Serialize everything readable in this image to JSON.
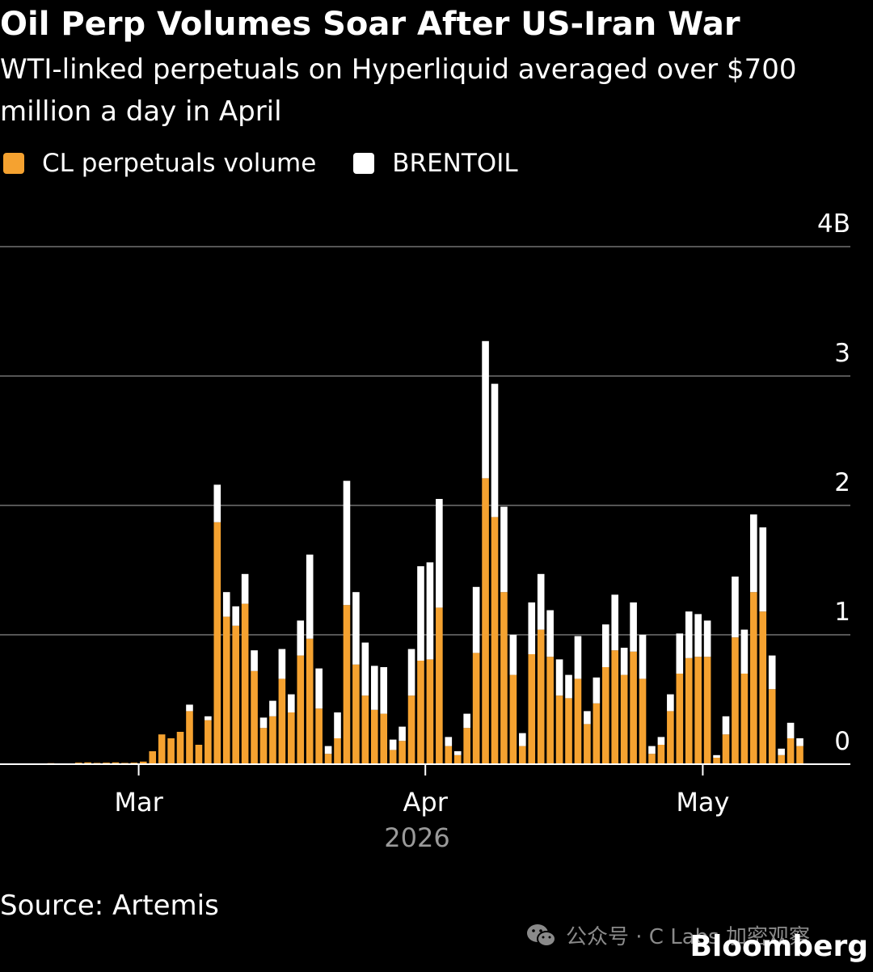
{
  "title": "Oil Perp Volumes Soar After US-Iran War",
  "subtitle": "WTI-linked perpetuals on Hyperliquid averaged over $700 million a day in April",
  "source": "Source: Artemis",
  "brand": "Bloomberg",
  "watermark": "公众号 · C Labs 加密观察",
  "icons": {
    "watermark": "wechat-icon"
  },
  "colors": {
    "background": "#000000",
    "cl": "#F5A230",
    "brent": "#FFFFFF",
    "grid": "#555555",
    "axis_text": "#FFFFFF",
    "year_text": "#9A9A9A"
  },
  "legend": [
    {
      "label": "CL perpetuals volume",
      "color": "#F5A230"
    },
    {
      "label": "BRENTOIL",
      "color": "#FFFFFF"
    }
  ],
  "chart_data": {
    "type": "bar",
    "stacked": true,
    "y_unit": "billion USD",
    "ylim": [
      0,
      4
    ],
    "y_ticks": [
      {
        "value": 0,
        "label": "0"
      },
      {
        "value": 1,
        "label": "1"
      },
      {
        "value": 2,
        "label": "2"
      },
      {
        "value": 3,
        "label": "3"
      },
      {
        "value": 4,
        "label": "4B"
      }
    ],
    "x_ticks": [
      {
        "date": "2026-03-01",
        "label": "Mar"
      },
      {
        "date": "2026-04-01",
        "label": "Apr"
      },
      {
        "date": "2026-05-01",
        "label": "May"
      }
    ],
    "x_year_label": "2026",
    "grid": true,
    "legend_position": "top-left",
    "x": [
      "2026-02-17",
      "2026-02-18",
      "2026-02-19",
      "2026-02-20",
      "2026-02-21",
      "2026-02-22",
      "2026-02-23",
      "2026-02-24",
      "2026-02-25",
      "2026-02-26",
      "2026-02-27",
      "2026-02-28",
      "2026-03-01",
      "2026-03-02",
      "2026-03-03",
      "2026-03-04",
      "2026-03-05",
      "2026-03-06",
      "2026-03-07",
      "2026-03-08",
      "2026-03-09",
      "2026-03-10",
      "2026-03-11",
      "2026-03-12",
      "2026-03-13",
      "2026-03-14",
      "2026-03-15",
      "2026-03-16",
      "2026-03-17",
      "2026-03-18",
      "2026-03-19",
      "2026-03-20",
      "2026-03-21",
      "2026-03-22",
      "2026-03-23",
      "2026-03-24",
      "2026-03-25",
      "2026-03-26",
      "2026-03-27",
      "2026-03-28",
      "2026-03-29",
      "2026-03-30",
      "2026-03-31",
      "2026-04-01",
      "2026-04-02",
      "2026-04-03",
      "2026-04-04",
      "2026-04-05",
      "2026-04-06",
      "2026-04-07",
      "2026-04-08",
      "2026-04-09",
      "2026-04-10",
      "2026-04-11",
      "2026-04-12",
      "2026-04-13",
      "2026-04-14",
      "2026-04-15",
      "2026-04-16",
      "2026-04-17",
      "2026-04-18",
      "2026-04-19",
      "2026-04-20",
      "2026-04-21",
      "2026-04-22",
      "2026-04-23",
      "2026-04-24",
      "2026-04-25",
      "2026-04-26",
      "2026-04-27",
      "2026-04-28",
      "2026-04-29",
      "2026-04-30",
      "2026-05-01",
      "2026-05-02",
      "2026-05-03",
      "2026-05-04",
      "2026-05-05",
      "2026-05-06",
      "2026-05-07",
      "2026-05-08",
      "2026-05-09",
      "2026-05-10",
      "2026-05-11"
    ],
    "series": [
      {
        "name": "CL perpetuals volume",
        "values": [
          0.004,
          0.006,
          0.008,
          0.006,
          0.005,
          0.012,
          0.014,
          0.01,
          0.012,
          0.014,
          0.01,
          0.012,
          0.02,
          0.1,
          0.23,
          0.2,
          0.25,
          0.41,
          0.15,
          0.34,
          1.87,
          1.14,
          1.07,
          1.24,
          0.72,
          0.28,
          0.37,
          0.66,
          0.4,
          0.84,
          0.97,
          0.43,
          0.08,
          0.2,
          1.23,
          0.77,
          0.53,
          0.42,
          0.39,
          0.11,
          0.18,
          0.53,
          0.8,
          0.81,
          1.21,
          0.14,
          0.07,
          0.28,
          0.86,
          2.21,
          1.91,
          1.33,
          0.69,
          0.14,
          0.85,
          1.04,
          0.83,
          0.53,
          0.51,
          0.66,
          0.31,
          0.47,
          0.75,
          0.88,
          0.69,
          0.87,
          0.66,
          0.08,
          0.15,
          0.41,
          0.7,
          0.82,
          0.83,
          0.83,
          0.05,
          0.23,
          0.98,
          0.7,
          1.33,
          1.18,
          0.58,
          0.07,
          0.2,
          0.14
        ]
      },
      {
        "name": "BRENTOIL",
        "values": [
          0,
          0,
          0,
          0,
          0,
          0,
          0,
          0,
          0,
          0,
          0,
          0,
          0,
          0,
          0,
          0,
          0,
          0.05,
          0,
          0.03,
          0.29,
          0.19,
          0.15,
          0.23,
          0.16,
          0.08,
          0.12,
          0.23,
          0.14,
          0.27,
          0.65,
          0.31,
          0.06,
          0.2,
          0.96,
          0.56,
          0.41,
          0.34,
          0.36,
          0.08,
          0.11,
          0.36,
          0.73,
          0.75,
          0.84,
          0.07,
          0.03,
          0.11,
          0.51,
          1.06,
          1.03,
          0.66,
          0.31,
          0.1,
          0.4,
          0.43,
          0.36,
          0.28,
          0.18,
          0.33,
          0.1,
          0.2,
          0.33,
          0.43,
          0.21,
          0.38,
          0.34,
          0.06,
          0.06,
          0.13,
          0.31,
          0.36,
          0.33,
          0.28,
          0.02,
          0.14,
          0.47,
          0.34,
          0.6,
          0.65,
          0.26,
          0.05,
          0.12,
          0.06
        ]
      }
    ]
  }
}
